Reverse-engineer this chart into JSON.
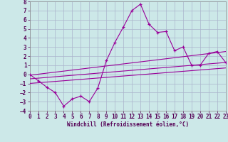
{
  "xlabel": "Windchill (Refroidissement éolien,°C)",
  "xlim": [
    0,
    23
  ],
  "ylim": [
    -4,
    8
  ],
  "yticks": [
    -4,
    -3,
    -2,
    -1,
    0,
    1,
    2,
    3,
    4,
    5,
    6,
    7,
    8
  ],
  "xticks": [
    0,
    1,
    2,
    3,
    4,
    5,
    6,
    7,
    8,
    9,
    10,
    11,
    12,
    13,
    14,
    15,
    16,
    17,
    18,
    19,
    20,
    21,
    22,
    23
  ],
  "background_color": "#cce8e8",
  "grid_color": "#aab4cc",
  "line_color": "#990099",
  "series1_x": [
    0,
    1,
    2,
    3,
    4,
    5,
    6,
    7,
    8,
    9,
    10,
    11,
    12,
    13,
    14,
    15,
    16,
    17,
    18,
    19,
    20,
    21,
    22,
    23
  ],
  "series1_y": [
    0.0,
    -0.7,
    -1.4,
    -2.0,
    -3.5,
    -2.7,
    -2.4,
    -3.0,
    -1.5,
    1.5,
    3.5,
    5.2,
    7.0,
    7.7,
    5.5,
    4.6,
    4.7,
    2.6,
    3.0,
    1.0,
    1.0,
    2.3,
    2.5,
    1.3
  ],
  "series2_x": [
    0,
    23
  ],
  "series2_y": [
    -0.1,
    2.5
  ],
  "series3_x": [
    0,
    23
  ],
  "series3_y": [
    -0.5,
    1.3
  ],
  "series4_x": [
    0,
    23
  ],
  "series4_y": [
    -1.0,
    0.7
  ]
}
